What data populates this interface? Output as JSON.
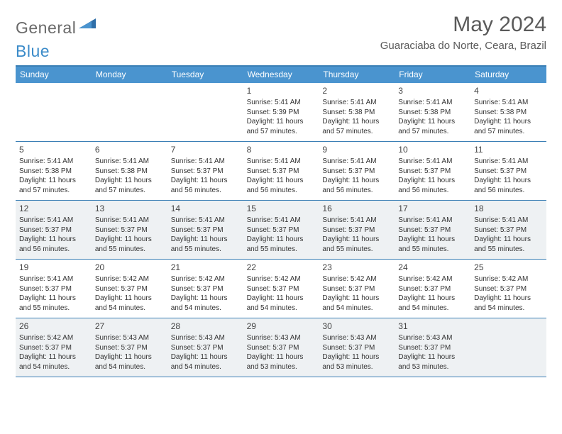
{
  "logo": {
    "text1": "General",
    "text2": "Blue"
  },
  "title": "May 2024",
  "location": "Guaraciaba do Norte, Ceara, Brazil",
  "colors": {
    "header_bg": "#4a94cf",
    "header_border": "#3a7fb5",
    "shaded_cell": "#eef1f3",
    "text": "#333333",
    "logo_gray": "#6a6a6a",
    "logo_blue": "#3b8bc9"
  },
  "day_headers": [
    "Sunday",
    "Monday",
    "Tuesday",
    "Wednesday",
    "Thursday",
    "Friday",
    "Saturday"
  ],
  "weeks": [
    [
      null,
      null,
      null,
      {
        "d": "1",
        "sr": "Sunrise: 5:41 AM",
        "ss": "Sunset: 5:39 PM",
        "dl1": "Daylight: 11 hours",
        "dl2": "and 57 minutes."
      },
      {
        "d": "2",
        "sr": "Sunrise: 5:41 AM",
        "ss": "Sunset: 5:38 PM",
        "dl1": "Daylight: 11 hours",
        "dl2": "and 57 minutes."
      },
      {
        "d": "3",
        "sr": "Sunrise: 5:41 AM",
        "ss": "Sunset: 5:38 PM",
        "dl1": "Daylight: 11 hours",
        "dl2": "and 57 minutes."
      },
      {
        "d": "4",
        "sr": "Sunrise: 5:41 AM",
        "ss": "Sunset: 5:38 PM",
        "dl1": "Daylight: 11 hours",
        "dl2": "and 57 minutes."
      }
    ],
    [
      {
        "d": "5",
        "sr": "Sunrise: 5:41 AM",
        "ss": "Sunset: 5:38 PM",
        "dl1": "Daylight: 11 hours",
        "dl2": "and 57 minutes."
      },
      {
        "d": "6",
        "sr": "Sunrise: 5:41 AM",
        "ss": "Sunset: 5:38 PM",
        "dl1": "Daylight: 11 hours",
        "dl2": "and 57 minutes."
      },
      {
        "d": "7",
        "sr": "Sunrise: 5:41 AM",
        "ss": "Sunset: 5:37 PM",
        "dl1": "Daylight: 11 hours",
        "dl2": "and 56 minutes."
      },
      {
        "d": "8",
        "sr": "Sunrise: 5:41 AM",
        "ss": "Sunset: 5:37 PM",
        "dl1": "Daylight: 11 hours",
        "dl2": "and 56 minutes."
      },
      {
        "d": "9",
        "sr": "Sunrise: 5:41 AM",
        "ss": "Sunset: 5:37 PM",
        "dl1": "Daylight: 11 hours",
        "dl2": "and 56 minutes."
      },
      {
        "d": "10",
        "sr": "Sunrise: 5:41 AM",
        "ss": "Sunset: 5:37 PM",
        "dl1": "Daylight: 11 hours",
        "dl2": "and 56 minutes."
      },
      {
        "d": "11",
        "sr": "Sunrise: 5:41 AM",
        "ss": "Sunset: 5:37 PM",
        "dl1": "Daylight: 11 hours",
        "dl2": "and 56 minutes."
      }
    ],
    [
      {
        "d": "12",
        "sr": "Sunrise: 5:41 AM",
        "ss": "Sunset: 5:37 PM",
        "dl1": "Daylight: 11 hours",
        "dl2": "and 56 minutes."
      },
      {
        "d": "13",
        "sr": "Sunrise: 5:41 AM",
        "ss": "Sunset: 5:37 PM",
        "dl1": "Daylight: 11 hours",
        "dl2": "and 55 minutes."
      },
      {
        "d": "14",
        "sr": "Sunrise: 5:41 AM",
        "ss": "Sunset: 5:37 PM",
        "dl1": "Daylight: 11 hours",
        "dl2": "and 55 minutes."
      },
      {
        "d": "15",
        "sr": "Sunrise: 5:41 AM",
        "ss": "Sunset: 5:37 PM",
        "dl1": "Daylight: 11 hours",
        "dl2": "and 55 minutes."
      },
      {
        "d": "16",
        "sr": "Sunrise: 5:41 AM",
        "ss": "Sunset: 5:37 PM",
        "dl1": "Daylight: 11 hours",
        "dl2": "and 55 minutes."
      },
      {
        "d": "17",
        "sr": "Sunrise: 5:41 AM",
        "ss": "Sunset: 5:37 PM",
        "dl1": "Daylight: 11 hours",
        "dl2": "and 55 minutes."
      },
      {
        "d": "18",
        "sr": "Sunrise: 5:41 AM",
        "ss": "Sunset: 5:37 PM",
        "dl1": "Daylight: 11 hours",
        "dl2": "and 55 minutes."
      }
    ],
    [
      {
        "d": "19",
        "sr": "Sunrise: 5:41 AM",
        "ss": "Sunset: 5:37 PM",
        "dl1": "Daylight: 11 hours",
        "dl2": "and 55 minutes."
      },
      {
        "d": "20",
        "sr": "Sunrise: 5:42 AM",
        "ss": "Sunset: 5:37 PM",
        "dl1": "Daylight: 11 hours",
        "dl2": "and 54 minutes."
      },
      {
        "d": "21",
        "sr": "Sunrise: 5:42 AM",
        "ss": "Sunset: 5:37 PM",
        "dl1": "Daylight: 11 hours",
        "dl2": "and 54 minutes."
      },
      {
        "d": "22",
        "sr": "Sunrise: 5:42 AM",
        "ss": "Sunset: 5:37 PM",
        "dl1": "Daylight: 11 hours",
        "dl2": "and 54 minutes."
      },
      {
        "d": "23",
        "sr": "Sunrise: 5:42 AM",
        "ss": "Sunset: 5:37 PM",
        "dl1": "Daylight: 11 hours",
        "dl2": "and 54 minutes."
      },
      {
        "d": "24",
        "sr": "Sunrise: 5:42 AM",
        "ss": "Sunset: 5:37 PM",
        "dl1": "Daylight: 11 hours",
        "dl2": "and 54 minutes."
      },
      {
        "d": "25",
        "sr": "Sunrise: 5:42 AM",
        "ss": "Sunset: 5:37 PM",
        "dl1": "Daylight: 11 hours",
        "dl2": "and 54 minutes."
      }
    ],
    [
      {
        "d": "26",
        "sr": "Sunrise: 5:42 AM",
        "ss": "Sunset: 5:37 PM",
        "dl1": "Daylight: 11 hours",
        "dl2": "and 54 minutes."
      },
      {
        "d": "27",
        "sr": "Sunrise: 5:43 AM",
        "ss": "Sunset: 5:37 PM",
        "dl1": "Daylight: 11 hours",
        "dl2": "and 54 minutes."
      },
      {
        "d": "28",
        "sr": "Sunrise: 5:43 AM",
        "ss": "Sunset: 5:37 PM",
        "dl1": "Daylight: 11 hours",
        "dl2": "and 54 minutes."
      },
      {
        "d": "29",
        "sr": "Sunrise: 5:43 AM",
        "ss": "Sunset: 5:37 PM",
        "dl1": "Daylight: 11 hours",
        "dl2": "and 53 minutes."
      },
      {
        "d": "30",
        "sr": "Sunrise: 5:43 AM",
        "ss": "Sunset: 5:37 PM",
        "dl1": "Daylight: 11 hours",
        "dl2": "and 53 minutes."
      },
      {
        "d": "31",
        "sr": "Sunrise: 5:43 AM",
        "ss": "Sunset: 5:37 PM",
        "dl1": "Daylight: 11 hours",
        "dl2": "and 53 minutes."
      },
      null
    ]
  ],
  "shaded_rows": [
    2,
    4
  ]
}
